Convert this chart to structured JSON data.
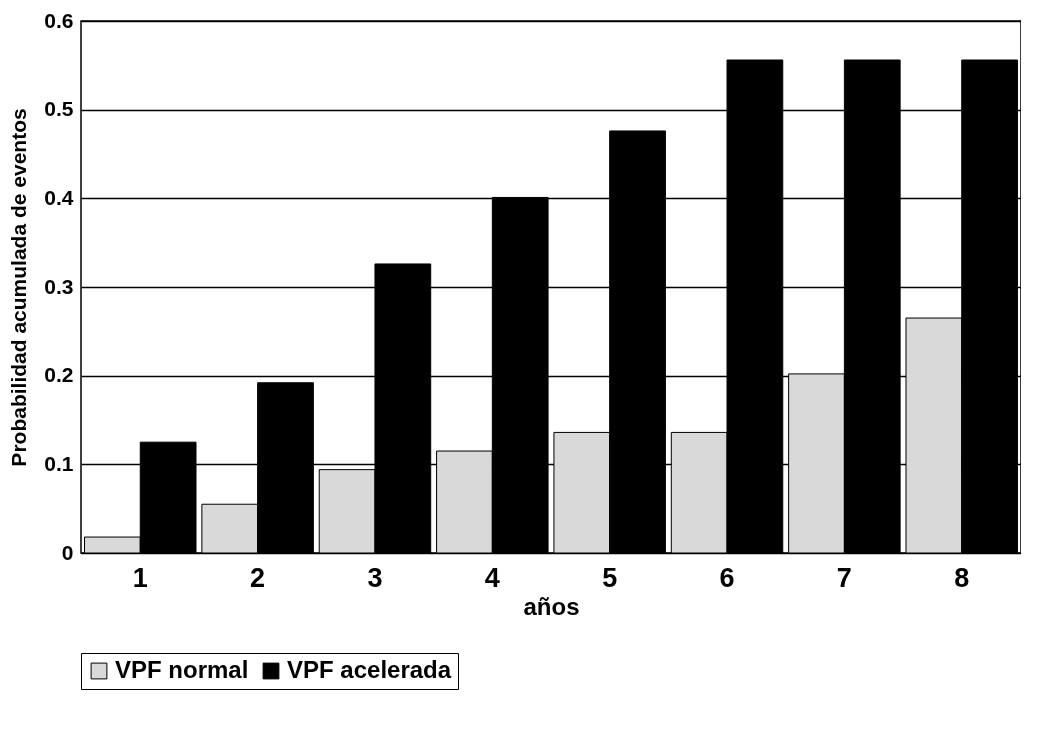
{
  "chart_data": {
    "type": "bar",
    "xlabel": "años",
    "ylabel": "Probabilidad acumulada de eventos",
    "categories": [
      "1",
      "2",
      "3",
      "4",
      "5",
      "6",
      "7",
      "8"
    ],
    "series": [
      {
        "name": "VPF normal",
        "color": "#d9d9d9",
        "values": [
          0.018,
          0.055,
          0.094,
          0.115,
          0.136,
          0.136,
          0.202,
          0.265
        ]
      },
      {
        "name": "VPF acelerada",
        "color": "#000000",
        "values": [
          0.125,
          0.192,
          0.326,
          0.401,
          0.476,
          0.556,
          0.556,
          0.556
        ]
      }
    ],
    "ylim": [
      0,
      0.6
    ],
    "yticks": [
      0,
      0.1,
      0.2,
      0.3,
      0.4,
      0.5,
      0.6
    ],
    "grid": "y",
    "legend": "bottom"
  }
}
